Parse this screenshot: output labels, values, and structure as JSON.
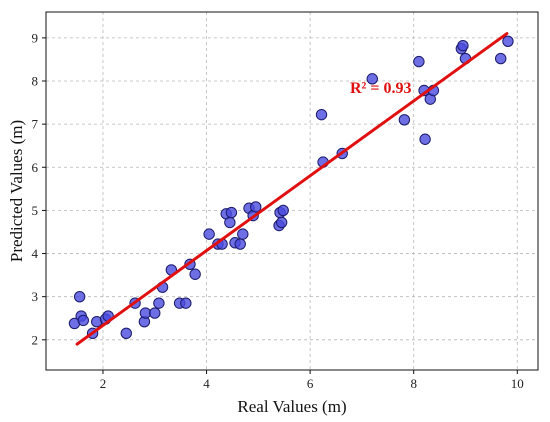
{
  "chart_data": {
    "type": "scatter",
    "xlabel": "Real Values (m)",
    "ylabel": "Predicted Values (m)",
    "xlim": [
      0.9,
      10.4
    ],
    "ylim": [
      1.3,
      9.6
    ],
    "xticks": [
      2,
      4,
      6,
      8,
      10
    ],
    "yticks": [
      2,
      3,
      4,
      5,
      6,
      7,
      8,
      9
    ],
    "grid": true,
    "annotation": "R² = 0.93",
    "colors": {
      "points": "#4a4adf",
      "point_edge": "#1a1a6a",
      "fit_line": "#e01010",
      "grid": "#b8b8b8"
    },
    "fit_line": {
      "x": [
        1.5,
        9.8
      ],
      "y": [
        1.9,
        9.1
      ]
    },
    "points": [
      {
        "x": 1.45,
        "y": 2.38
      },
      {
        "x": 1.55,
        "y": 3.0
      },
      {
        "x": 1.58,
        "y": 2.55
      },
      {
        "x": 1.62,
        "y": 2.45
      },
      {
        "x": 1.8,
        "y": 2.15
      },
      {
        "x": 1.88,
        "y": 2.42
      },
      {
        "x": 2.05,
        "y": 2.48
      },
      {
        "x": 2.1,
        "y": 2.55
      },
      {
        "x": 2.45,
        "y": 2.15
      },
      {
        "x": 2.62,
        "y": 2.85
      },
      {
        "x": 2.8,
        "y": 2.42
      },
      {
        "x": 2.82,
        "y": 2.62
      },
      {
        "x": 3.0,
        "y": 2.62
      },
      {
        "x": 3.08,
        "y": 2.85
      },
      {
        "x": 3.15,
        "y": 3.22
      },
      {
        "x": 3.32,
        "y": 3.62
      },
      {
        "x": 3.48,
        "y": 2.85
      },
      {
        "x": 3.6,
        "y": 2.85
      },
      {
        "x": 3.68,
        "y": 3.75
      },
      {
        "x": 3.78,
        "y": 3.52
      },
      {
        "x": 4.05,
        "y": 4.45
      },
      {
        "x": 4.22,
        "y": 4.22
      },
      {
        "x": 4.3,
        "y": 4.22
      },
      {
        "x": 4.38,
        "y": 4.92
      },
      {
        "x": 4.45,
        "y": 4.72
      },
      {
        "x": 4.48,
        "y": 4.95
      },
      {
        "x": 4.55,
        "y": 4.25
      },
      {
        "x": 4.65,
        "y": 4.22
      },
      {
        "x": 4.7,
        "y": 4.45
      },
      {
        "x": 4.82,
        "y": 5.05
      },
      {
        "x": 4.9,
        "y": 4.88
      },
      {
        "x": 4.95,
        "y": 5.08
      },
      {
        "x": 5.4,
        "y": 4.65
      },
      {
        "x": 5.42,
        "y": 4.95
      },
      {
        "x": 5.45,
        "y": 4.72
      },
      {
        "x": 5.48,
        "y": 5.0
      },
      {
        "x": 6.22,
        "y": 7.22
      },
      {
        "x": 6.25,
        "y": 6.12
      },
      {
        "x": 6.62,
        "y": 6.32
      },
      {
        "x": 7.2,
        "y": 8.05
      },
      {
        "x": 7.82,
        "y": 7.1
      },
      {
        "x": 8.1,
        "y": 8.45
      },
      {
        "x": 8.2,
        "y": 7.78
      },
      {
        "x": 8.22,
        "y": 6.65
      },
      {
        "x": 8.32,
        "y": 7.58
      },
      {
        "x": 8.38,
        "y": 7.78
      },
      {
        "x": 8.92,
        "y": 8.75
      },
      {
        "x": 8.95,
        "y": 8.82
      },
      {
        "x": 9.0,
        "y": 8.52
      },
      {
        "x": 9.68,
        "y": 8.52
      },
      {
        "x": 9.82,
        "y": 8.92
      }
    ]
  }
}
